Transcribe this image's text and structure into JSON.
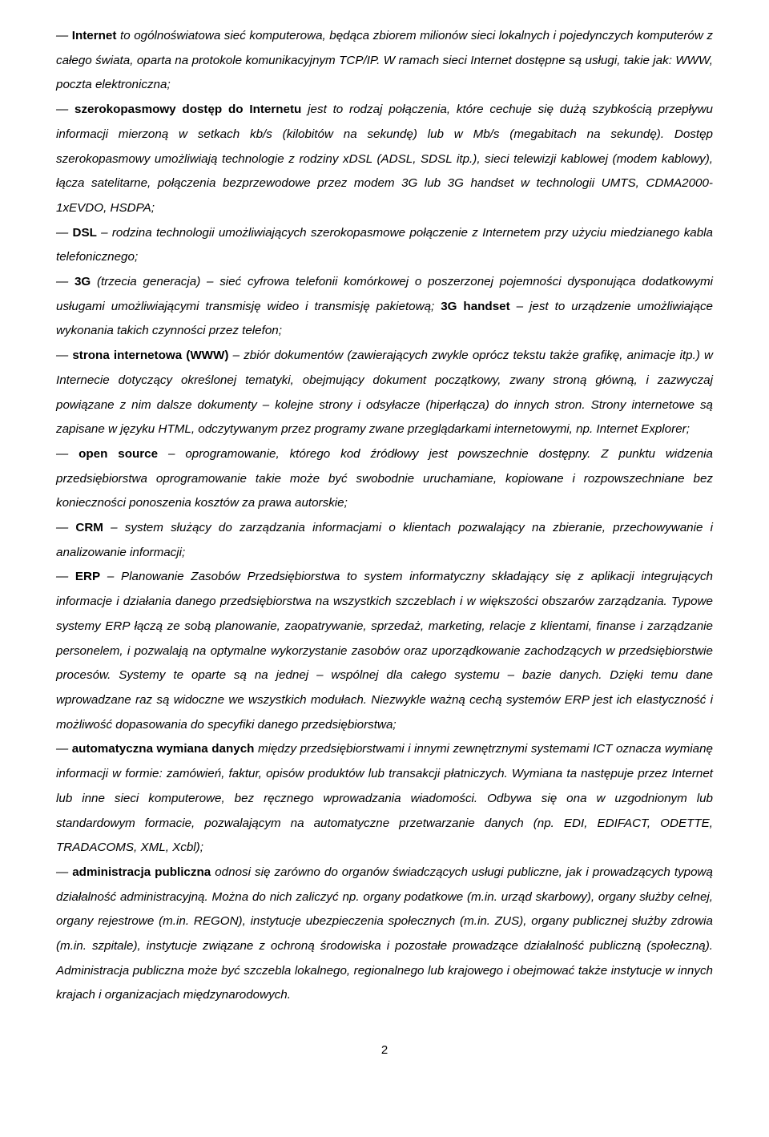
{
  "doc": {
    "p1a": "— ",
    "p1b": "Internet",
    "p1c": " to ogólnoświatowa sieć komputerowa, będąca zbiorem milionów sieci lokalnych i pojedynczych komputerów z całego świata, oparta na protokole komunikacyjnym TCP/IP. W ramach sieci Internet dostępne są usługi, takie jak: WWW, poczta elektroniczna;",
    "p2a": "— ",
    "p2b": "szerokopasmowy dostęp do Internetu",
    "p2c": " jest to rodzaj połączenia, które cechuje się dużą szybkością przepływu informacji mierzoną w setkach kb/s (kilobitów na sekundę) lub w Mb/s (megabitach na sekundę). Dostęp szerokopasmowy umożliwiają technologie z rodziny xDSL (ADSL, SDSL itp.), sieci telewizji kablowej (modem kablowy), łącza satelitarne, połączenia bezprzewodowe przez modem 3G lub 3G handset w technologii UMTS, CDMA2000-1xEVDO, HSDPA;",
    "p3a": "— ",
    "p3b": "DSL",
    "p3c": " – rodzina technologii umożliwiających szerokopasmowe połączenie z Internetem przy użyciu miedzianego kabla telefonicznego;",
    "p4a": "— ",
    "p4b": "3G",
    "p4c": " (trzecia generacja) – sieć cyfrowa telefonii komórkowej o poszerzonej pojemności dysponująca dodatkowymi usługami umożliwiającymi transmisję wideo i transmisję pakietową; ",
    "p4d": "3G handset",
    "p4e": " – jest to urządzenie umożliwiające wykonania takich czynności przez telefon;",
    "p5a": "— ",
    "p5b": "strona internetowa (WWW)",
    "p5c": " – zbiór dokumentów (zawierających zwykle oprócz tekstu także grafikę, animacje itp.) w Internecie dotyczący określonej tematyki, obejmujący dokument początkowy, zwany stroną główną, i zazwyczaj powiązane z nim dalsze dokumenty – kolejne strony i odsyłacze (hiperłącza) do innych stron. Strony internetowe są zapisane w języku HTML, odczytywanym przez programy zwane przeglądarkami internetowymi, np. Internet Explorer;",
    "p6a": "— ",
    "p6b": "open source",
    "p6c": " – oprogramowanie, którego kod źródłowy jest powszechnie dostępny. Z punktu widzenia przedsiębiorstwa oprogramowanie takie może być swobodnie uruchamiane, kopiowane i rozpowszechniane bez konieczności ponoszenia kosztów za prawa autorskie;",
    "p7a": "— ",
    "p7b": "CRM",
    "p7c": " – system służący do zarządzania informacjami o klientach pozwalający na zbieranie, przechowywanie i analizowanie informacji;",
    "p8a": "— ",
    "p8b": "ERP",
    "p8c": " – Planowanie Zasobów Przedsiębiorstwa to system informatyczny składający się z aplikacji integrujących informacje i działania danego przedsiębiorstwa na wszystkich szczeblach i w większości obszarów zarządzania. Typowe systemy ERP łączą ze sobą planowanie, zaopatrywanie, sprzedaż, marketing, relacje z klientami, finanse i zarządzanie personelem, i pozwalają na optymalne wykorzystanie zasobów oraz uporządkowanie zachodzących w przedsiębiorstwie procesów. Systemy te oparte są na jednej – wspólnej dla całego systemu – bazie danych. Dzięki temu dane wprowadzane raz są widoczne we wszystkich modułach. Niezwykle ważną cechą systemów ERP jest ich elastyczność i możliwość dopasowania do specyfiki danego przedsiębiorstwa;",
    "p9a": "— ",
    "p9b": "automatyczna wymiana danych",
    "p9c": " między przedsiębiorstwami i innymi zewnętrznymi systemami ICT oznacza wymianę informacji w formie: zamówień, faktur, opisów produktów lub transakcji płatniczych. Wymiana ta następuje przez Internet lub inne sieci komputerowe, bez ręcznego wprowadzania wiadomości. Odbywa się ona w uzgodnionym lub standardowym formacie, pozwalającym na automatyczne przetwarzanie danych (np. EDI, EDIFACT, ODETTE, TRADACOMS, XML, Xcbl);",
    "p10a": "— ",
    "p10b": "administracja publiczna",
    "p10c": " odnosi się zarówno do organów świadczących usługi publiczne, jak i prowadzących typową działalność administracyjną. Można do nich zaliczyć np. organy podatkowe (m.in. urząd skarbowy), organy służby celnej, organy rejestrowe (m.in. REGON), instytucje ubezpieczenia społecznych (m.in. ZUS), organy publicznej służby zdrowia (m.in. szpitale), instytucje związane z ochroną środowiska i pozostałe prowadzące działalność publiczną (społeczną). Administracja publiczna może być szczebla lokalnego, regionalnego lub krajowego i obejmować także instytucje w innych krajach i organizacjach międzynarodowych.",
    "pagenum": "2"
  }
}
